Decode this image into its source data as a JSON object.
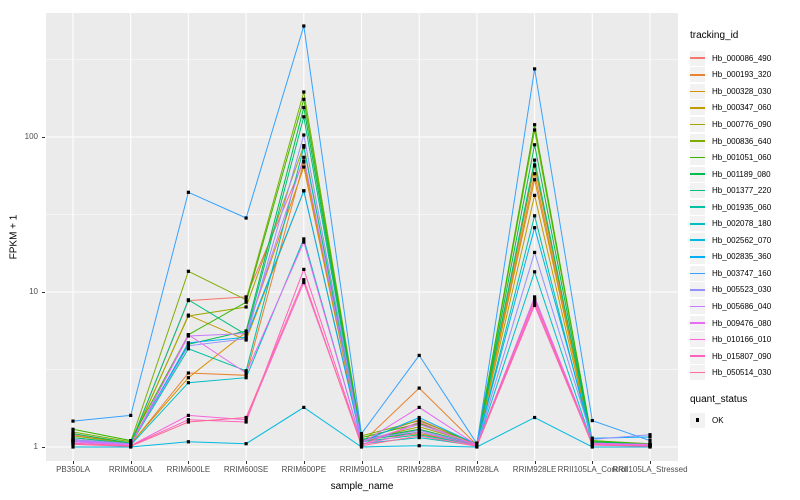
{
  "chart_data": {
    "type": "line",
    "title": "",
    "xlabel": "sample_name",
    "ylabel": "FPKM + 1",
    "y_scale": "log10",
    "y_ticks": [
      1,
      10,
      100
    ],
    "ylim": [
      0.85,
      630
    ],
    "grid": "white major and minor gridlines on gray panel",
    "legend_position": "right",
    "legend_title": "tracking_id",
    "legend2_title": "quant_status",
    "quant_status_label": "OK",
    "point_color": "#000000",
    "panel_background": "#EBEBEB",
    "categories": [
      "PB350LA",
      "RRIM600LA",
      "RRIM600LE",
      "RRIM600SE",
      "RRIM600PE",
      "RRIM901LA",
      "RRIM928BA",
      "RRIM928LA",
      "RRIM928LE",
      "RRII105LA_Control",
      "RRII105LA_Stressed"
    ],
    "series": [
      {
        "name": "Hb_000086_490",
        "color": "#F8766D",
        "values": [
          1.2,
          1.05,
          8.8,
          9.3,
          70,
          1.1,
          1.5,
          1.04,
          65,
          1.08,
          1.03
        ]
      },
      {
        "name": "Hb_000193_320",
        "color": "#EA8331",
        "values": [
          1.12,
          1.04,
          3.0,
          2.9,
          69,
          1.06,
          2.4,
          1.03,
          58,
          1.06,
          1.02
        ]
      },
      {
        "name": "Hb_000328_030",
        "color": "#D89000",
        "values": [
          1.15,
          1.05,
          2.8,
          5.5,
          64,
          1.08,
          1.3,
          1.04,
          53,
          1.07,
          1.03
        ]
      },
      {
        "name": "Hb_000347_060",
        "color": "#C09B00",
        "values": [
          1.1,
          1.04,
          7.1,
          4.9,
          45,
          1.12,
          1.22,
          1.04,
          42,
          1.06,
          1.02
        ]
      },
      {
        "name": "Hb_000776_090",
        "color": "#A3A500",
        "values": [
          1.18,
          1.06,
          7.0,
          8.0,
          88,
          1.1,
          1.35,
          1.05,
          66,
          1.08,
          1.03
        ]
      },
      {
        "name": "Hb_000836_640",
        "color": "#7CAE00",
        "values": [
          1.25,
          1.08,
          13.6,
          8.9,
          195,
          1.18,
          1.48,
          1.05,
          111,
          1.1,
          1.05
        ]
      },
      {
        "name": "Hb_001051_060",
        "color": "#39B600",
        "values": [
          1.3,
          1.1,
          5.3,
          8.6,
          175,
          1.15,
          1.42,
          1.06,
          120,
          1.1,
          1.04
        ]
      },
      {
        "name": "Hb_001189_080",
        "color": "#00BB4E",
        "values": [
          1.22,
          1.06,
          4.6,
          5.6,
          155,
          1.12,
          1.3,
          1.04,
          89,
          1.08,
          1.04
        ]
      },
      {
        "name": "Hb_001377_220",
        "color": "#00BF7D",
        "values": [
          1.15,
          1.05,
          8.9,
          5.3,
          135,
          1.1,
          1.25,
          1.03,
          71,
          1.06,
          1.03
        ]
      },
      {
        "name": "Hb_001935_060",
        "color": "#00C1A3",
        "values": [
          1.1,
          1.04,
          4.3,
          3.1,
          86,
          1.08,
          1.2,
          1.03,
          31,
          1.05,
          1.02
        ]
      },
      {
        "name": "Hb_002078_180",
        "color": "#00BFC4",
        "values": [
          1.08,
          1.03,
          2.6,
          2.8,
          22,
          1.05,
          1.15,
          1.02,
          13.5,
          1.04,
          1.02
        ]
      },
      {
        "name": "Hb_002562_070",
        "color": "#00BAE0",
        "values": [
          1.0,
          1.0,
          1.08,
          1.05,
          1.8,
          1.0,
          1.02,
          1.0,
          1.55,
          1.0,
          1.0
        ]
      },
      {
        "name": "Hb_002835_360",
        "color": "#00B0F6",
        "values": [
          1.1,
          1.04,
          4.7,
          5.1,
          45,
          1.08,
          1.55,
          1.04,
          26,
          1.14,
          1.16
        ]
      },
      {
        "name": "Hb_003747_160",
        "color": "#35A2FF",
        "values": [
          1.47,
          1.6,
          44,
          30,
          520,
          1.22,
          3.9,
          1.05,
          275,
          1.48,
          1.1
        ]
      },
      {
        "name": "Hb_005523_030",
        "color": "#9590FF",
        "values": [
          1.12,
          1.05,
          4.5,
          5.0,
          103,
          1.1,
          1.28,
          1.04,
          18,
          1.12,
          1.2
        ]
      },
      {
        "name": "Hb_005686_040",
        "color": "#C77CFF",
        "values": [
          1.1,
          1.04,
          5.2,
          5.4,
          74,
          1.08,
          1.4,
          1.03,
          9.3,
          1.06,
          1.04
        ]
      },
      {
        "name": "Hb_009476_080",
        "color": "#E76BF3",
        "values": [
          1.08,
          1.03,
          5.3,
          3.0,
          21,
          1.06,
          1.8,
          1.03,
          8.9,
          1.05,
          1.03
        ]
      },
      {
        "name": "Hb_010166_010",
        "color": "#FA62DB",
        "values": [
          1.06,
          1.02,
          1.6,
          1.5,
          11.5,
          1.04,
          1.25,
          1.02,
          8.2,
          1.04,
          1.02
        ]
      },
      {
        "name": "Hb_015807_090",
        "color": "#FF62BC",
        "values": [
          1.05,
          1.02,
          1.5,
          1.45,
          14,
          1.03,
          1.45,
          1.02,
          9.0,
          1.03,
          1.02
        ]
      },
      {
        "name": "Hb_050514_030",
        "color": "#FF6A98",
        "values": [
          1.04,
          1.01,
          1.45,
          1.55,
          12,
          1.02,
          1.18,
          1.01,
          8.5,
          1.03,
          1.01
        ]
      }
    ]
  }
}
